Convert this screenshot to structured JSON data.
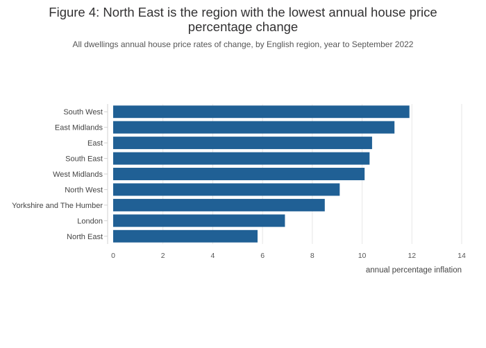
{
  "chart_data": {
    "type": "bar",
    "orientation": "horizontal",
    "title": "Figure 4: North East is the region with the lowest annual house price percentage change",
    "subtitle": "All dwellings annual house price rates of change, by English region, year to September 2022",
    "categories": [
      "South West",
      "East Midlands",
      "East",
      "South East",
      "West Midlands",
      "North West",
      "Yorkshire and The Humber",
      "London",
      "North East"
    ],
    "values": [
      11.9,
      11.3,
      10.4,
      10.3,
      10.1,
      9.1,
      8.5,
      6.9,
      5.8
    ],
    "xlabel": "annual percentage inflation",
    "ylabel": "",
    "xlim": [
      0,
      14
    ],
    "xticks": [
      "0",
      "2",
      "4",
      "6",
      "8",
      "10",
      "12",
      "14"
    ],
    "grid": true,
    "bar_color": "#206095"
  }
}
